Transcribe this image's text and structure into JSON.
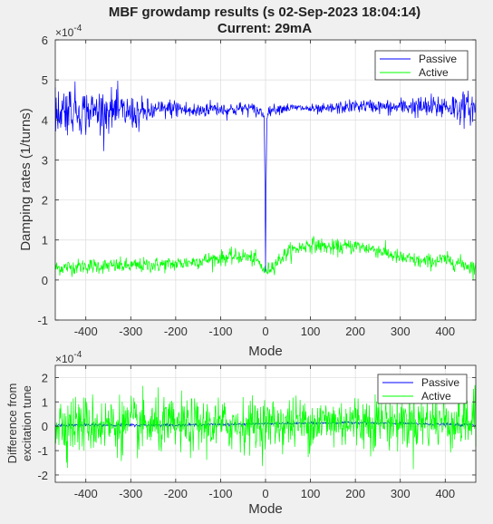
{
  "figure": {
    "title_line1": "MBF growdamp results (s 02-Sep-2023 18:04:14)",
    "title_line2": "Current: 29mA"
  },
  "chart_data": [
    {
      "type": "line",
      "xlabel": "Mode",
      "ylabel": "Damping rates (1/turns)",
      "exponent_label": "×10",
      "exponent_power": "-4",
      "xlim": [
        -468,
        468
      ],
      "ylim": [
        -1,
        6
      ],
      "xticks": [
        -400,
        -300,
        -200,
        -100,
        0,
        100,
        200,
        300,
        400
      ],
      "xtick_labels": [
        "-400",
        "-300",
        "-200",
        "-100",
        "0",
        "100",
        "200",
        "300",
        "400"
      ],
      "yticks": [
        -1,
        0,
        1,
        2,
        3,
        4,
        5,
        6
      ],
      "ytick_labels": [
        "-1",
        "0",
        "1",
        "2",
        "3",
        "4",
        "5",
        "6"
      ],
      "grid": true,
      "legend_position": "top-right",
      "series": [
        {
          "name": "Passive",
          "color": "#0000ff",
          "x": [
            -468,
            -440,
            -400,
            -360,
            -320,
            -280,
            -240,
            -200,
            -160,
            -120,
            -80,
            -40,
            -10,
            -3,
            -1,
            0,
            1,
            3,
            10,
            40,
            80,
            120,
            160,
            200,
            240,
            280,
            320,
            360,
            400,
            440,
            468
          ],
          "values": [
            4.2,
            4.3,
            4.2,
            4.25,
            4.2,
            4.15,
            4.25,
            4.3,
            4.2,
            4.3,
            4.25,
            4.3,
            4.2,
            4.1,
            2.1,
            0.2,
            2.1,
            4.1,
            4.25,
            4.3,
            4.3,
            4.25,
            4.3,
            4.35,
            4.35,
            4.3,
            4.35,
            4.3,
            4.35,
            4.3,
            4.3
          ],
          "noise": [
            0.4,
            0.38,
            0.35,
            0.32,
            0.3,
            0.25,
            0.15,
            0.15,
            0.15,
            0.12,
            0.12,
            0.1,
            0.1,
            0.05,
            0,
            0,
            0,
            0.05,
            0.08,
            0.08,
            0.06,
            0.08,
            0.1,
            0.1,
            0.1,
            0.12,
            0.15,
            0.18,
            0.22,
            0.25,
            0.25
          ]
        },
        {
          "name": "Active",
          "color": "#00ff00",
          "x": [
            -468,
            -400,
            -300,
            -200,
            -100,
            -50,
            -20,
            0,
            20,
            50,
            100,
            150,
            200,
            250,
            300,
            350,
            400,
            440,
            468
          ],
          "values": [
            0.3,
            0.35,
            0.35,
            0.4,
            0.55,
            0.6,
            0.5,
            0.2,
            0.4,
            0.7,
            0.9,
            0.8,
            0.85,
            0.75,
            0.55,
            0.45,
            0.5,
            0.4,
            0.3
          ],
          "noise": [
            0.12,
            0.12,
            0.12,
            0.12,
            0.12,
            0.12,
            0.12,
            0.1,
            0.12,
            0.12,
            0.12,
            0.12,
            0.12,
            0.12,
            0.12,
            0.12,
            0.12,
            0.12,
            0.15
          ]
        }
      ]
    },
    {
      "type": "line",
      "xlabel": "Mode",
      "ylabel_line1": "Difference from",
      "ylabel_line2": "excitation tune",
      "exponent_label": "×10",
      "exponent_power": "-4",
      "xlim": [
        -468,
        468
      ],
      "ylim": [
        -2.3,
        2.5
      ],
      "xticks": [
        -400,
        -300,
        -200,
        -100,
        0,
        100,
        200,
        300,
        400
      ],
      "xtick_labels": [
        "-400",
        "-300",
        "-200",
        "-100",
        "0",
        "100",
        "200",
        "300",
        "400"
      ],
      "yticks": [
        -2,
        -1,
        0,
        1,
        2
      ],
      "ytick_labels": [
        "-2",
        "-1",
        "0",
        "1",
        "2"
      ],
      "grid": true,
      "legend_position": "top-right",
      "series": [
        {
          "name": "Passive",
          "color": "#0000ff",
          "x": [
            -468,
            -200,
            0,
            200,
            468
          ],
          "values": [
            0.05,
            0.05,
            0.1,
            0.15,
            0.05
          ],
          "noise": [
            0.04,
            0.03,
            0.03,
            0.03,
            0.04
          ]
        },
        {
          "name": "Active",
          "color": "#00ff00",
          "x": [
            -468,
            -200,
            0,
            200,
            468
          ],
          "values": [
            0.1,
            0.0,
            0.1,
            0.2,
            0.2
          ],
          "noise": [
            0.75,
            0.7,
            0.65,
            0.7,
            0.75
          ]
        }
      ]
    }
  ]
}
